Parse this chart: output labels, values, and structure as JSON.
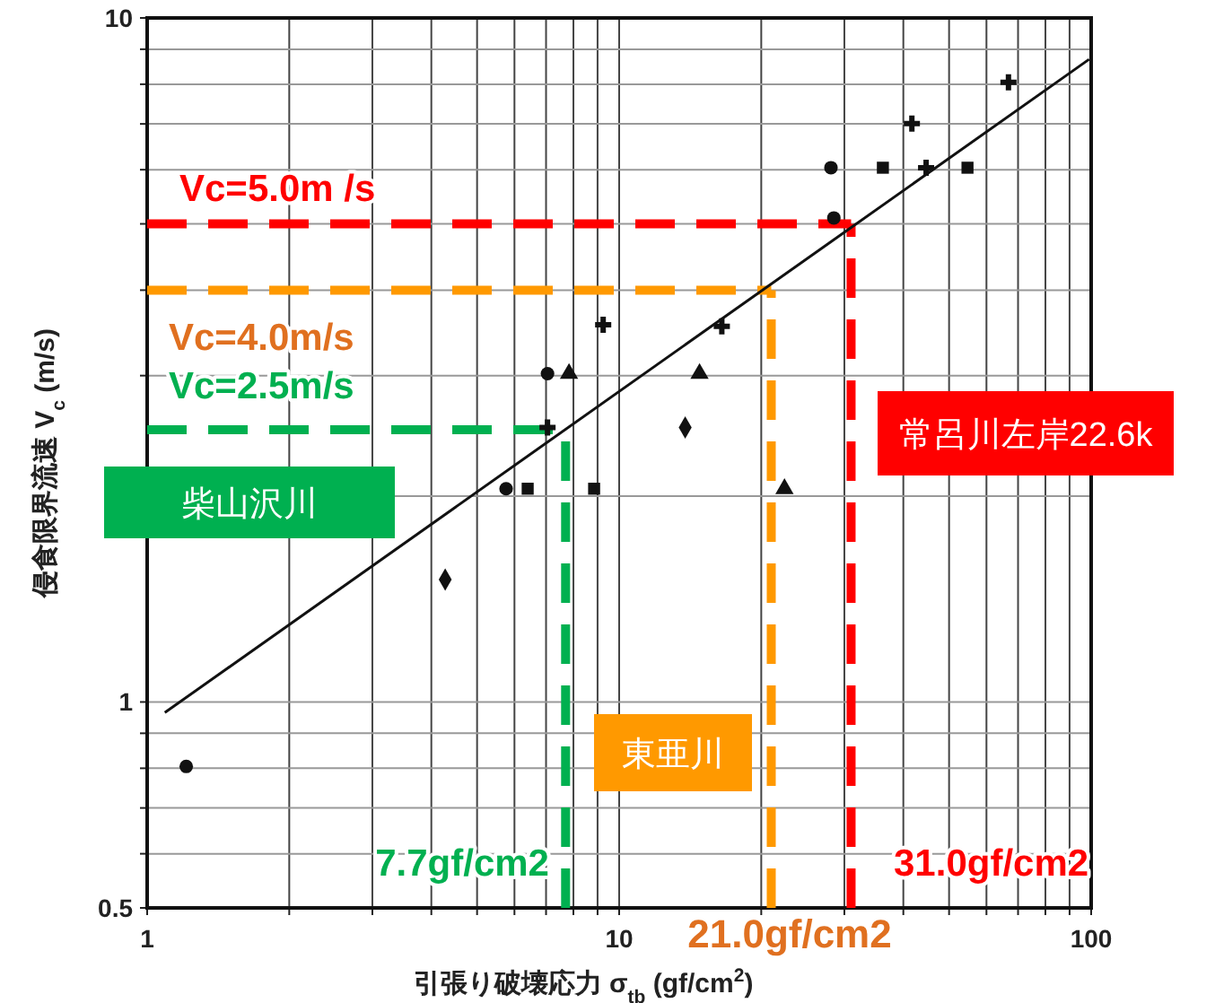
{
  "chart_data": {
    "type": "scatter",
    "xlabel": "引張り破壊応力 σ$_{tb}$ (gf/cm$^{2}$)",
    "ylabel": "侵食限界流速 V$_{c}$ (m/s)",
    "log": "xy",
    "xlim": [
      1,
      100
    ],
    "ylim": [
      0.5,
      10
    ],
    "xticks": [
      1,
      {
        "value": 2,
        "label": null
      },
      {
        "value": 3,
        "label": null
      },
      {
        "value": 4,
        "label": null
      },
      {
        "value": 5,
        "label": null
      },
      {
        "value": 6,
        "label": null
      },
      {
        "value": 7,
        "label": null
      },
      {
        "value": 8,
        "label": null
      },
      {
        "value": 9,
        "label": null
      },
      10,
      {
        "value": 20,
        "label": null
      },
      {
        "value": 30,
        "label": null
      },
      {
        "value": 40,
        "label": null
      },
      {
        "value": 50,
        "label": null
      },
      {
        "value": 60,
        "label": null
      },
      {
        "value": 70,
        "label": null
      },
      {
        "value": 80,
        "label": null
      },
      {
        "value": 90,
        "label": null
      },
      100
    ],
    "yticks": [
      0.5,
      {
        "value": 0.6,
        "label": null
      },
      {
        "value": 0.7,
        "label": null
      },
      {
        "value": 0.8,
        "label": null
      },
      {
        "value": 0.9,
        "label": null
      },
      1,
      {
        "value": 2,
        "label": null
      },
      {
        "value": 3,
        "label": null
      },
      {
        "value": 4,
        "label": null
      },
      {
        "value": 5,
        "label": null
      },
      {
        "value": 6,
        "label": null
      },
      {
        "value": 7,
        "label": null
      },
      {
        "value": 8,
        "label": null
      },
      {
        "value": 9,
        "label": null
      },
      10
    ],
    "grid": true,
    "series": [
      {
        "type": "line",
        "color": "#111111",
        "x": [
          1.09,
          99
        ],
        "values": [
          0.965,
          8.7
        ],
        "line_style": "solid"
      },
      {
        "color": "#111111",
        "marker": "circle",
        "x": [
          1.21,
          5.76,
          7.05,
          28.1,
          28.5
        ],
        "values": [
          0.805,
          2.05,
          3.02,
          6.04,
          5.1
        ]
      },
      {
        "color": "#111111",
        "marker": "square",
        "x": [
          6.4,
          8.85,
          36.2,
          54.7
        ],
        "values": [
          2.05,
          2.05,
          6.04,
          6.04
        ]
      },
      {
        "color": "#111111",
        "marker": "triangle",
        "x": [
          7.83,
          14.8,
          22.4
        ],
        "values": [
          3.02,
          3.02,
          2.05
        ]
      },
      {
        "color": "#111111",
        "marker": "diamond",
        "x": [
          4.28,
          13.8
        ],
        "values": [
          1.51,
          2.52
        ]
      },
      {
        "color": "#111111",
        "marker": "cross",
        "x": [
          7.05,
          9.25,
          16.5,
          44.7,
          41.7,
          66.8
        ],
        "values": [
          2.52,
          3.56,
          3.54,
          6.04,
          7.01,
          8.05
        ]
      }
    ],
    "ref_lines": [
      {
        "axis": "y",
        "value": 5.0,
        "label": "Vc=5.0m /s",
        "color": "#ff0000",
        "line_style": "dashed"
      },
      {
        "axis": "y",
        "value": 4.0,
        "label": "Vc=4.0m/s",
        "color": "#ff9900",
        "line_style": "dashed"
      },
      {
        "axis": "y",
        "value": 2.5,
        "label": "Vc=2.5m/s",
        "color": "#00b050",
        "line_style": "dashed"
      },
      {
        "axis": "x",
        "value": 7.7,
        "label": "7.7gf/cm2",
        "color": "#00b050",
        "line_style": "dashed"
      },
      {
        "axis": "x",
        "value": 21.0,
        "label": "21.0gf/cm2",
        "color": "#ff9900",
        "line_style": "dashed"
      },
      {
        "axis": "x",
        "value": 31.0,
        "label": "31.0gf/cm2",
        "color": "#ff0000",
        "line_style": "dashed"
      }
    ],
    "annotations": [
      "柴山沢川",
      "東亜川",
      "常呂川左岸22.6k"
    ]
  }
}
